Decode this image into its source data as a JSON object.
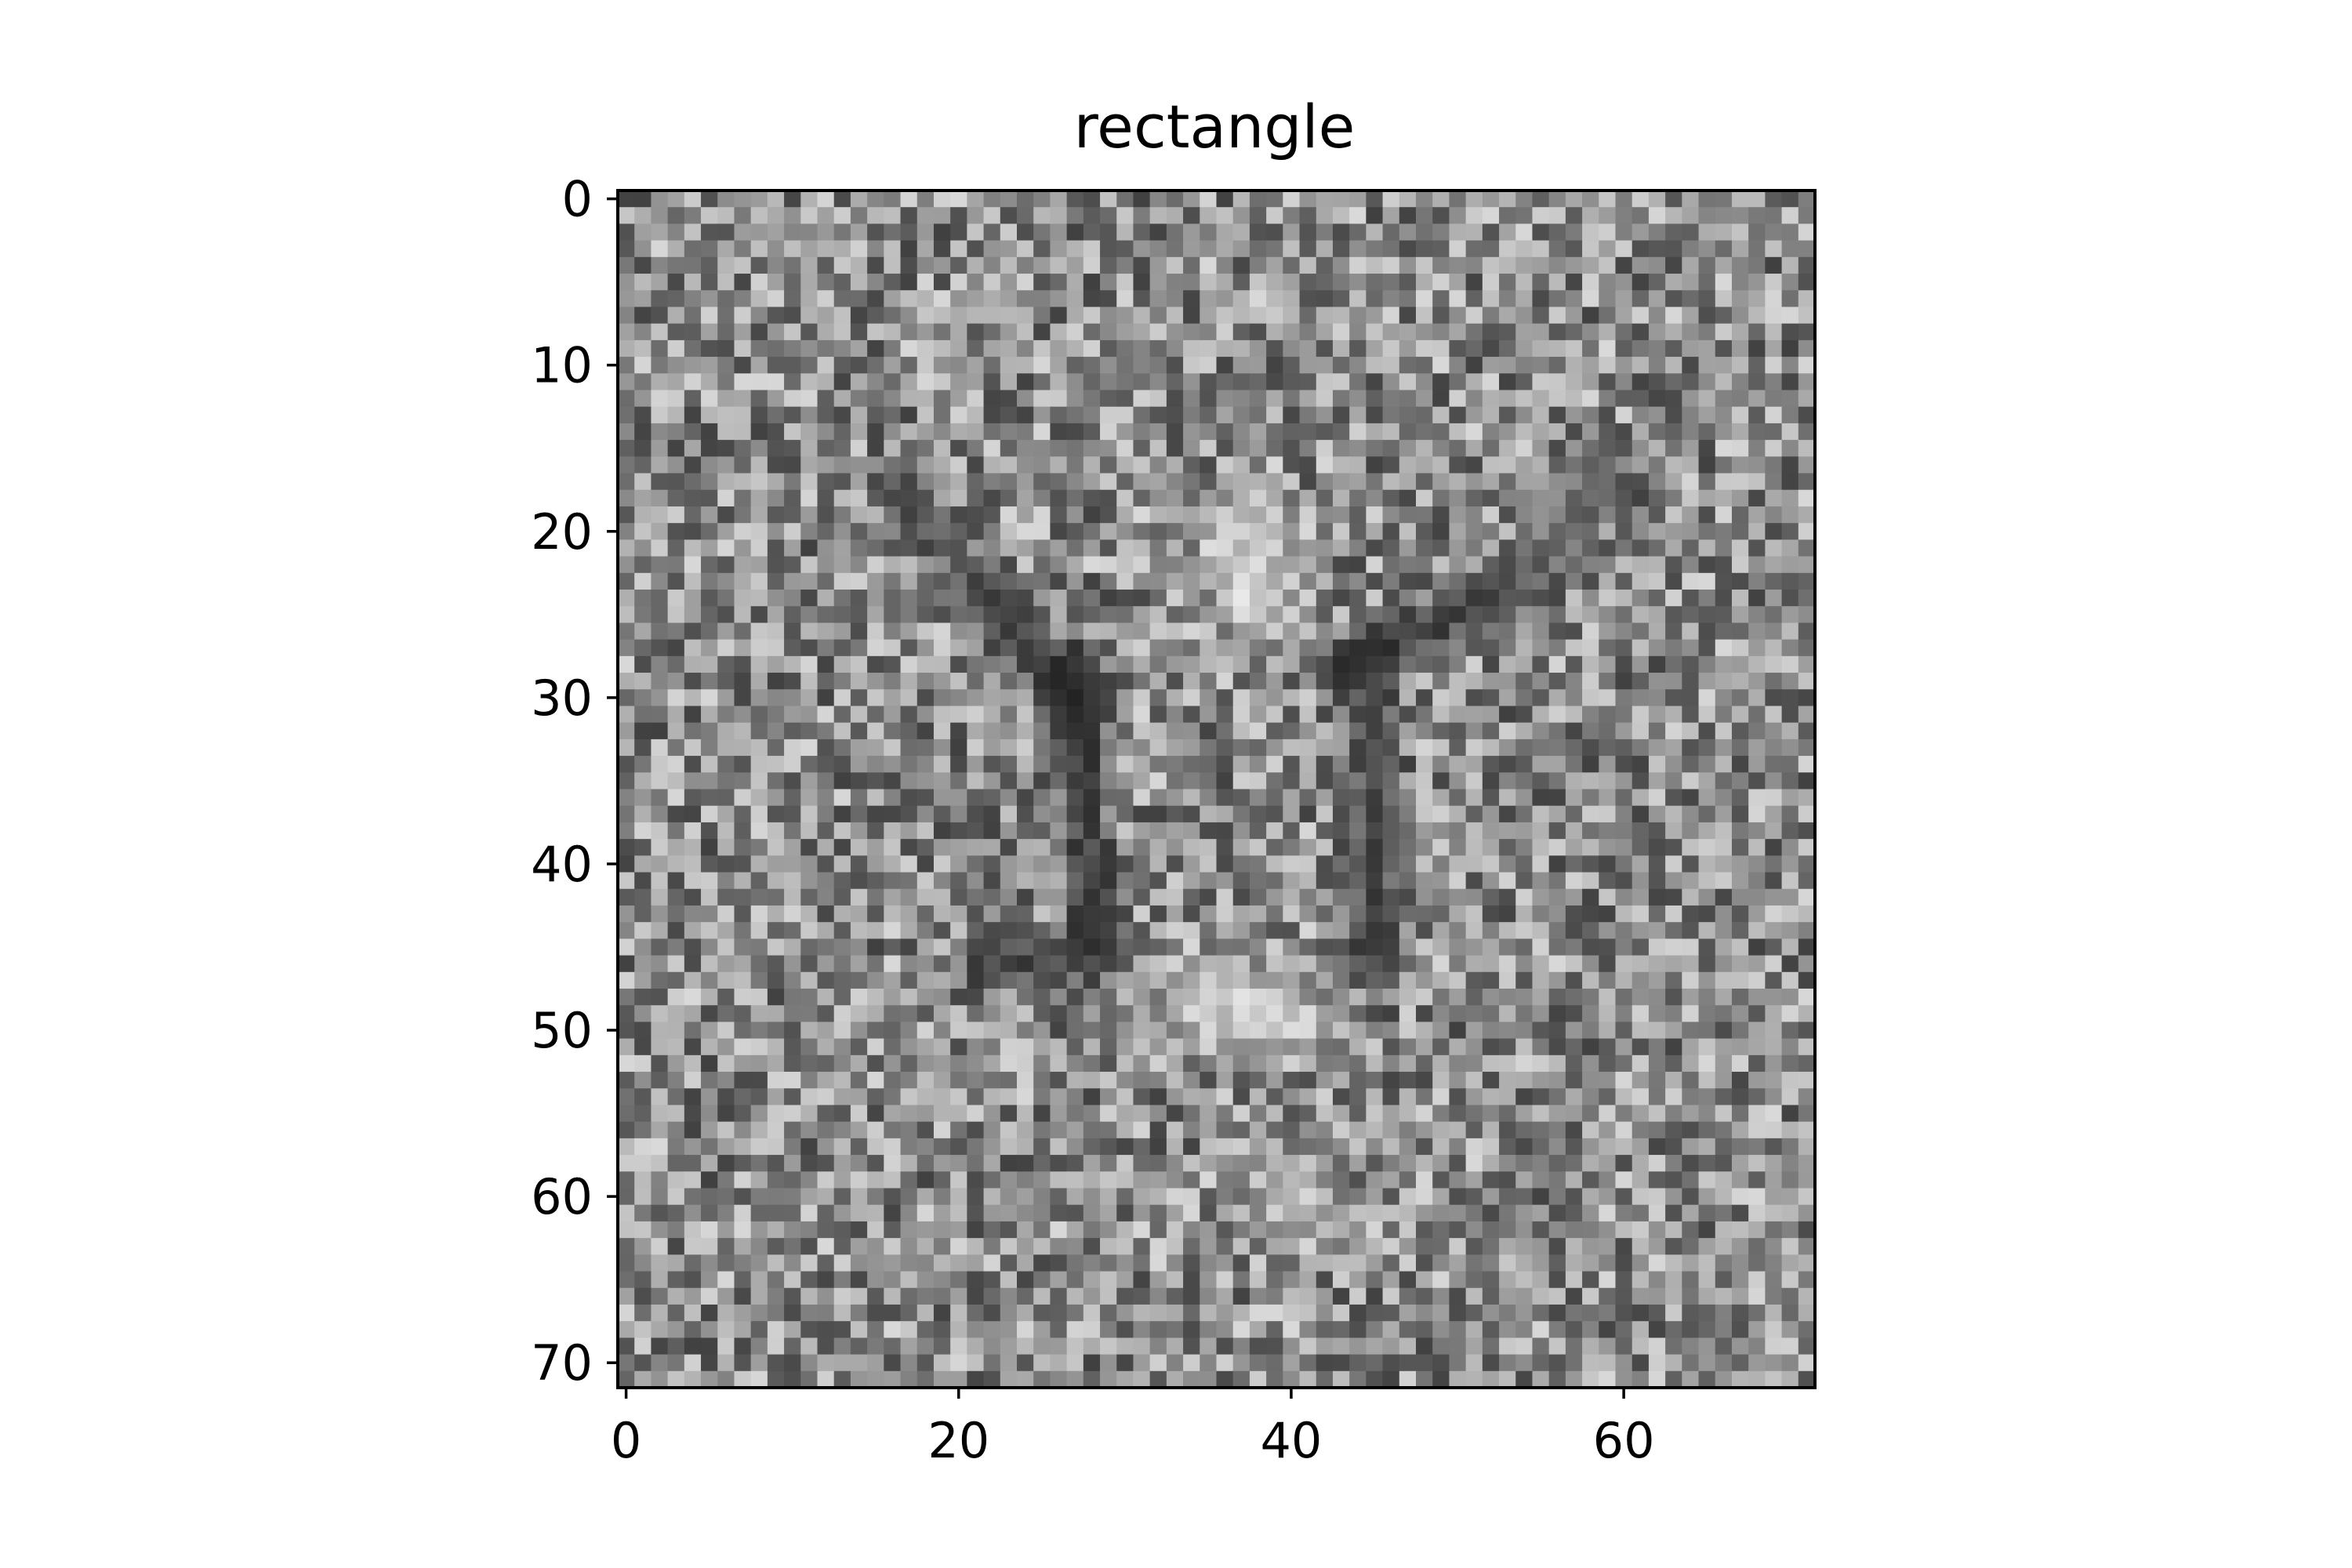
{
  "chart_data": {
    "type": "heatmap",
    "title": "rectangle",
    "xlabel": "",
    "ylabel": "",
    "colormap": "gray",
    "grid_size": [
      72,
      72
    ],
    "xlim": [
      -0.5,
      71.5
    ],
    "ylim": [
      71.5,
      -0.5
    ],
    "x_ticks": [
      0,
      20,
      40,
      60
    ],
    "y_ticks": [
      0,
      10,
      20,
      30,
      40,
      50,
      60,
      70
    ],
    "grid": false,
    "pattern": {
      "description_of_values": "per-pixel grayscale noise intensity in [0,1], mean ~0.55, with local features",
      "bright_spots": [
        {
          "x": 38,
          "y": 24,
          "value": 0.98
        },
        {
          "x": 35,
          "y": 48,
          "value": 0.95
        },
        {
          "x": 39,
          "y": 49,
          "value": 0.95
        },
        {
          "x": 37,
          "y": 20,
          "value": 0.9
        },
        {
          "x": 40,
          "y": 60,
          "value": 0.85
        }
      ],
      "dark_segments": [
        {
          "from": [
            22,
            24
          ],
          "to": [
            27,
            31
          ],
          "value": 0.1
        },
        {
          "from": [
            27,
            28
          ],
          "to": [
            28,
            45
          ],
          "value": 0.12
        },
        {
          "from": [
            22,
            46
          ],
          "to": [
            28,
            45
          ],
          "value": 0.15
        },
        {
          "from": [
            43,
            28
          ],
          "to": [
            52,
            24
          ],
          "value": 0.1
        },
        {
          "from": [
            45,
            27
          ],
          "to": [
            45,
            46
          ],
          "value": 0.15
        },
        {
          "from": [
            16,
            17
          ],
          "to": [
            22,
            24
          ],
          "value": 0.25
        },
        {
          "from": [
            52,
            24
          ],
          "to": [
            60,
            17
          ],
          "value": 0.25
        }
      ]
    }
  }
}
